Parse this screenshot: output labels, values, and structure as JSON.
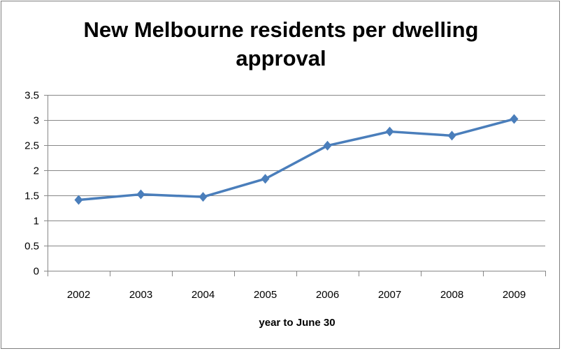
{
  "chart_data": {
    "type": "line",
    "title": "New Melbourne residents per dwelling approval",
    "title_lines": [
      "New Melbourne residents per dwelling",
      "approval"
    ],
    "xlabel": "year to June 30",
    "ylabel": "",
    "categories": [
      "2002",
      "2003",
      "2004",
      "2005",
      "2006",
      "2007",
      "2008",
      "2009"
    ],
    "values": [
      1.41,
      1.52,
      1.47,
      1.83,
      2.49,
      2.77,
      2.69,
      3.02
    ],
    "ylim": [
      0,
      3.5
    ],
    "yticks": [
      "0",
      "0.5",
      "1",
      "1.5",
      "2",
      "2.5",
      "3",
      "3.5"
    ],
    "grid": true,
    "legend": "none",
    "marker": "diamond",
    "line_color": "#4a7ebb",
    "grid_color": "#878787"
  }
}
